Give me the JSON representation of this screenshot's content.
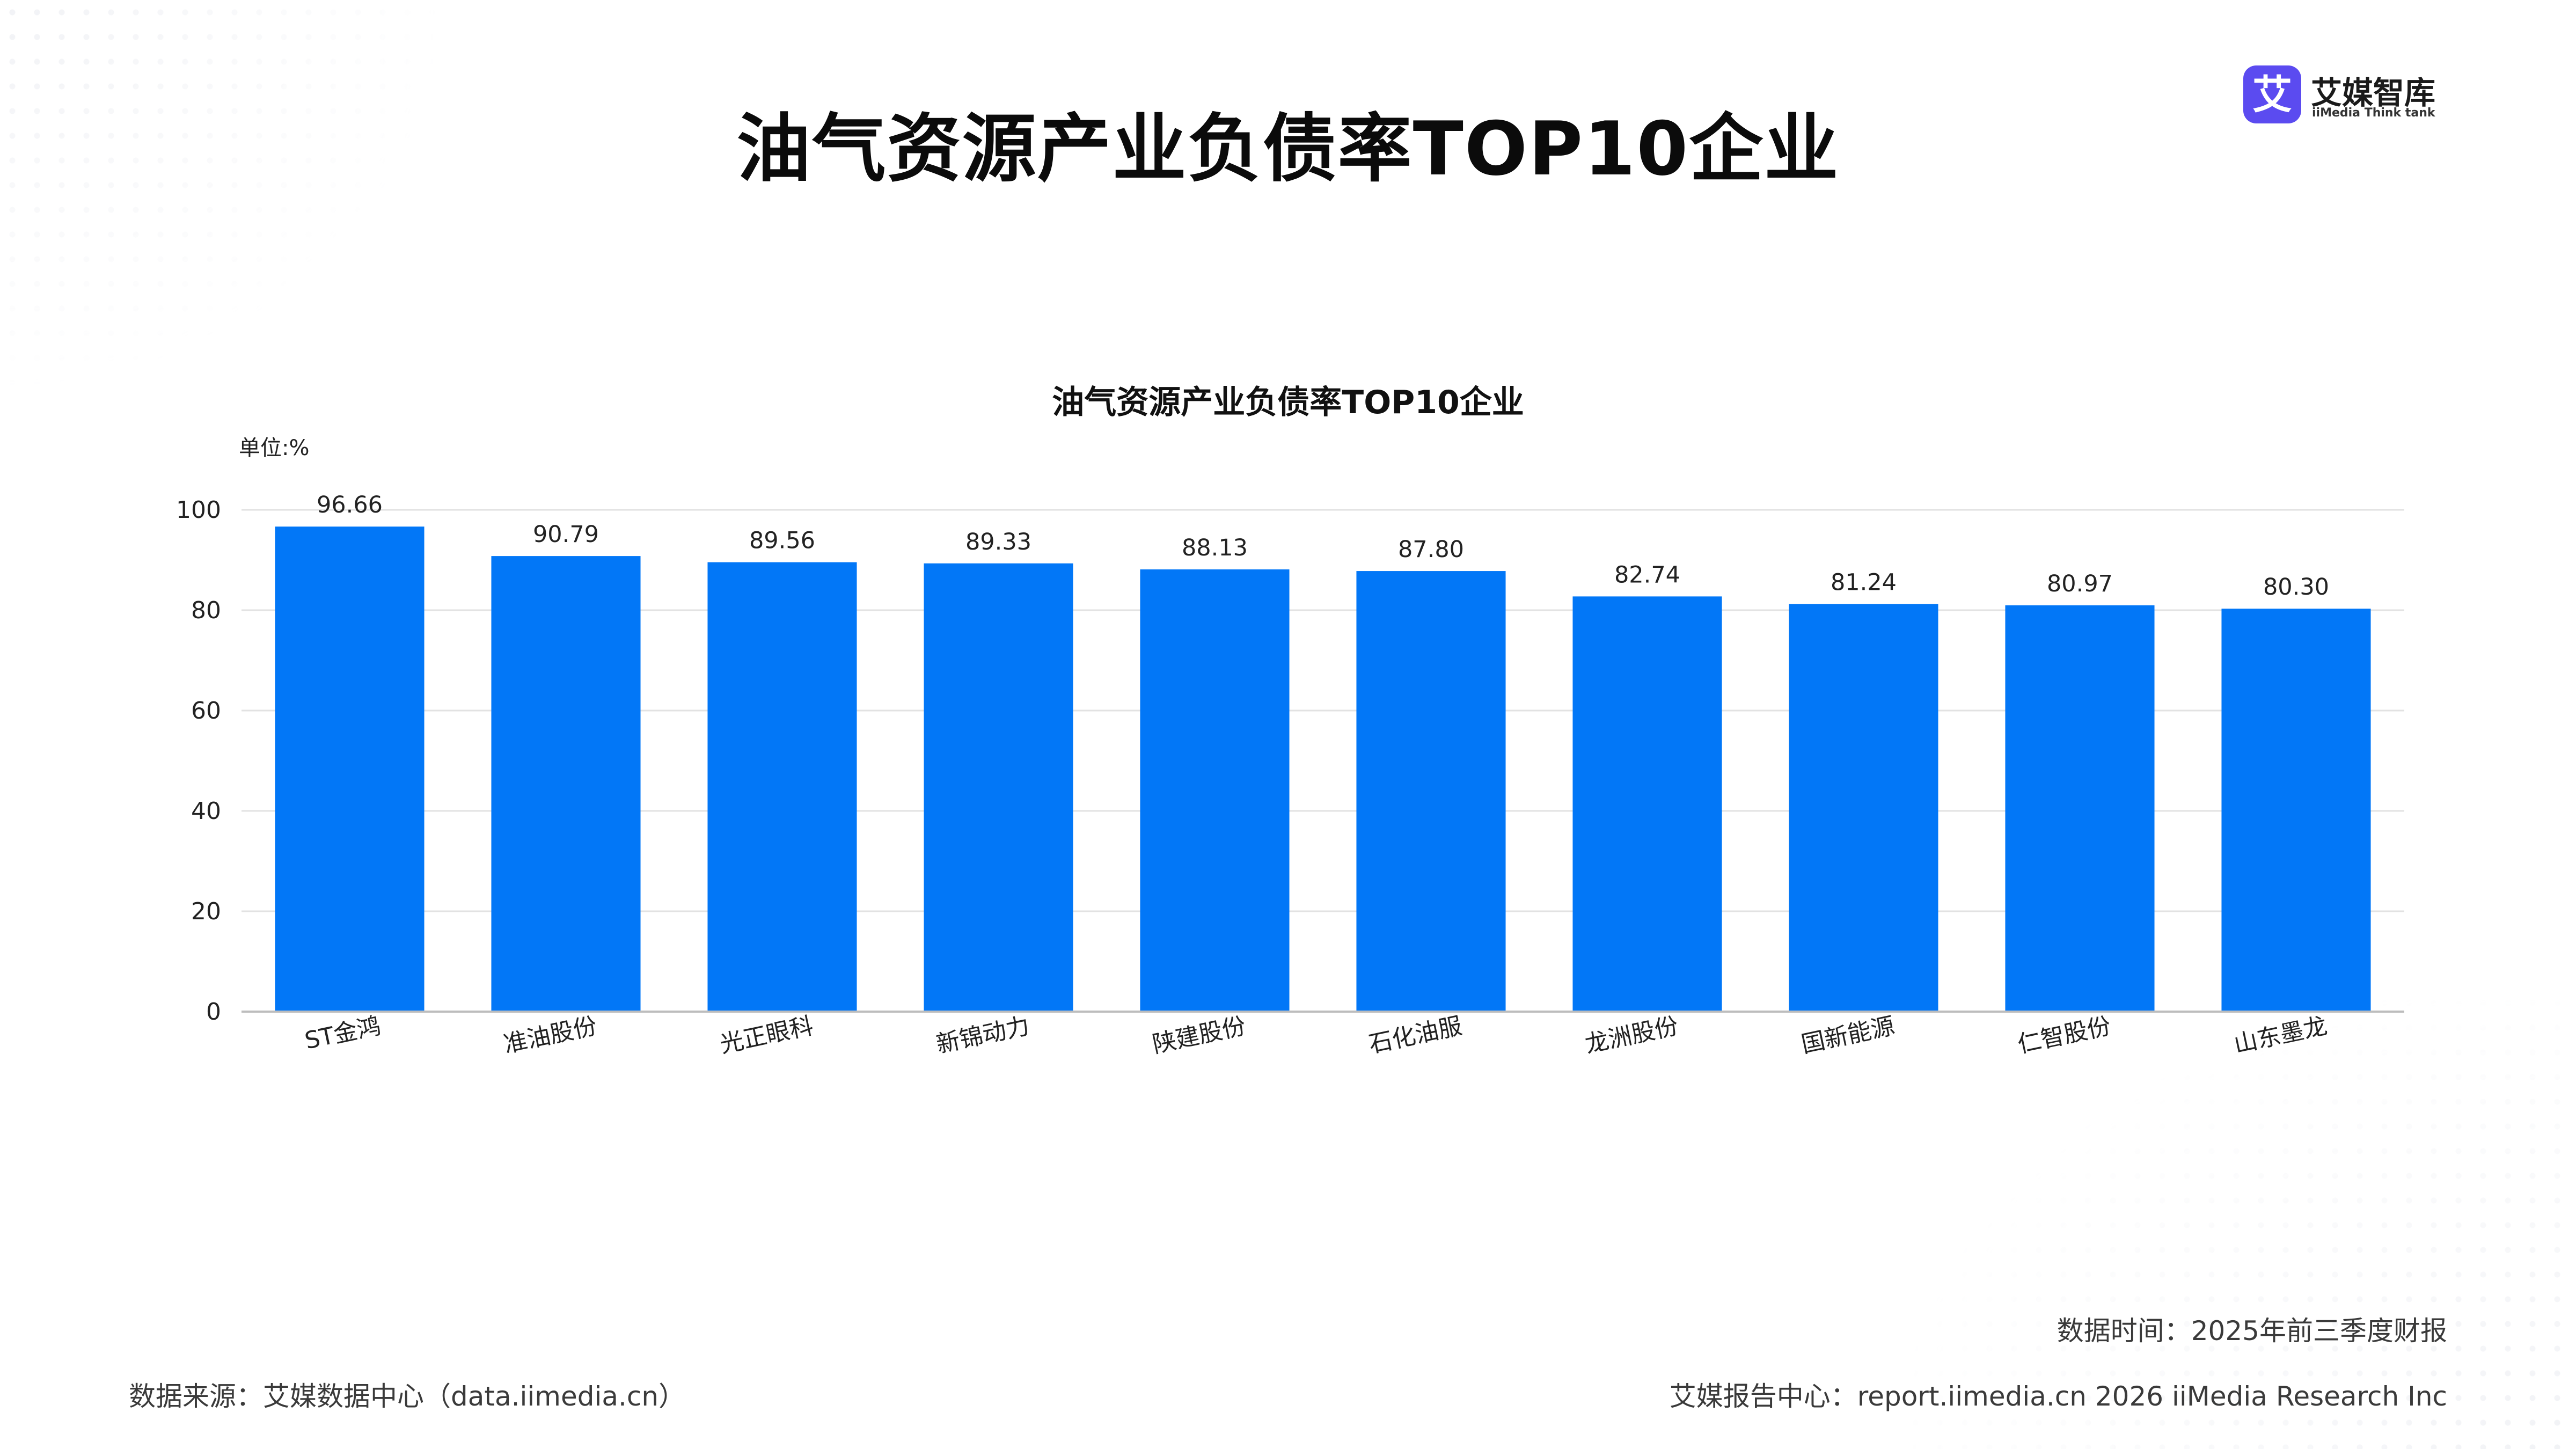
{
  "page": {
    "title": "油气资源产业负债率TOP10企业"
  },
  "brand": {
    "name": "艾媒智库",
    "subtitle": "iiMedia Think tank",
    "logo_glyph": "艾",
    "color": "#5b4bf0"
  },
  "chart_data": {
    "type": "bar",
    "title": "油气资源产业负债率TOP10企业",
    "unit_label": "单位:%",
    "categories": [
      "ST金鸿",
      "准油股份",
      "光正眼科",
      "新锦动力",
      "陕建股份",
      "石化油服",
      "龙洲股份",
      "国新能源",
      "仁智股份",
      "山东墨龙"
    ],
    "values": [
      96.66,
      90.79,
      89.56,
      89.33,
      88.13,
      87.8,
      82.74,
      81.24,
      80.97,
      80.3
    ],
    "value_labels": [
      "96.66",
      "90.79",
      "89.56",
      "89.33",
      "88.13",
      "87.80",
      "82.74",
      "81.24",
      "80.97",
      "80.30"
    ],
    "y_ticks": [
      0,
      20,
      40,
      60,
      80,
      100
    ],
    "ylim": [
      0,
      100
    ],
    "grid": true,
    "bar_color": "#0277f7"
  },
  "footer": {
    "data_time": "数据时间：2025年前三季度财报",
    "source": "数据来源：艾媒数据中心（data.iimedia.cn）",
    "report": "艾媒报告中心：report.iimedia.cn   2026 iiMedia Research Inc"
  }
}
